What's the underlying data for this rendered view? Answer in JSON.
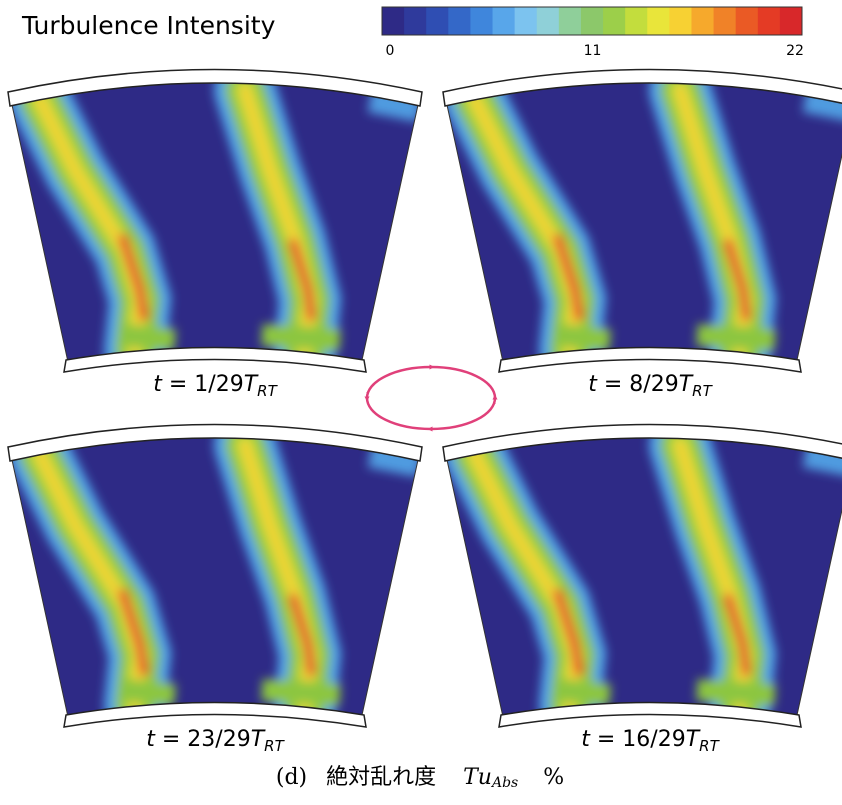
{
  "colorbar": {
    "title": "Turbulence Intensity",
    "lim": [
      0,
      22
    ],
    "ticks": [
      0,
      11,
      22
    ],
    "colors": [
      "#2e2a86",
      "#2f3a9c",
      "#2f4eb3",
      "#3468c8",
      "#3f86dc",
      "#58a6ea",
      "#7cc3ef",
      "#8fd0d8",
      "#8fcf9a",
      "#8cc86a",
      "#9ccf4a",
      "#c3dd3d",
      "#e9e53a",
      "#f7d133",
      "#f6a92c",
      "#f08228",
      "#ea5a25",
      "#e43b25",
      "#d8282a"
    ]
  },
  "panels": [
    {
      "var": "t",
      "text": " = 1/29",
      "sym": "T",
      "sub": "RT"
    },
    {
      "var": "t",
      "text": " = 8/29",
      "sym": "T",
      "sub": "RT"
    },
    {
      "var": "t",
      "text": " = 23/29",
      "sym": "T",
      "sub": "RT"
    },
    {
      "var": "t",
      "text": " = 16/29",
      "sym": "T",
      "sub": "RT"
    }
  ],
  "caption": {
    "label": "(d)",
    "text": "絶対乱れ度",
    "sym": "Tu",
    "sub": "Abs",
    "unit": "%"
  }
}
